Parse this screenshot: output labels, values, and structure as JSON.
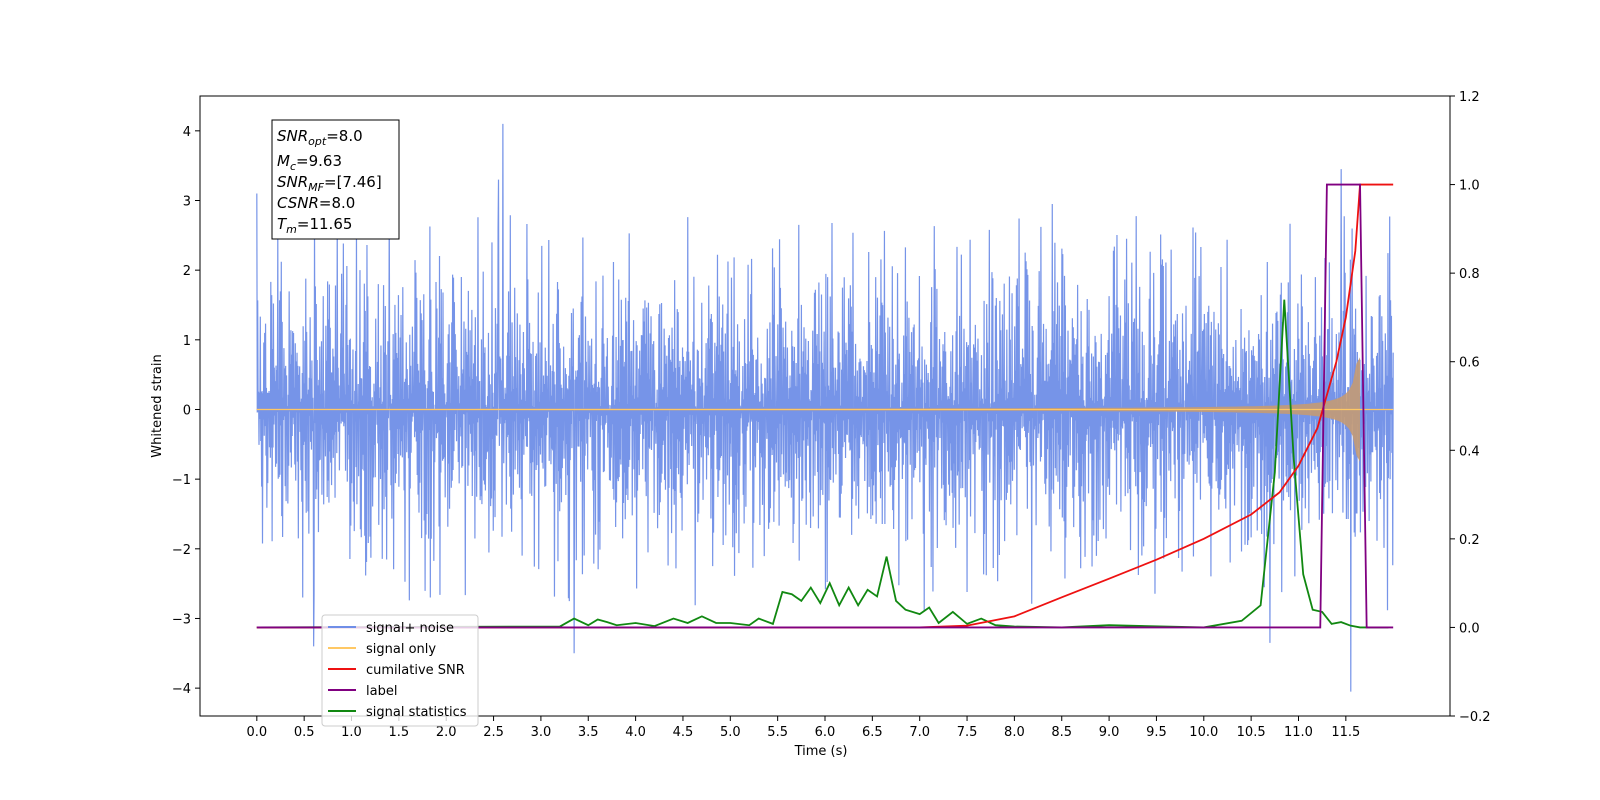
{
  "chart_data": {
    "type": "line",
    "xlabel": "Time (s)",
    "ylabel": "Whitened strain",
    "xlim": [
      -0.6,
      12.6
    ],
    "ylim_left": [
      -4.4,
      4.5
    ],
    "ylim_right": [
      -0.2,
      1.2
    ],
    "x_ticks": [
      "0.0",
      "0.5",
      "1.0",
      "1.5",
      "2.0",
      "2.5",
      "3.0",
      "3.5",
      "4.0",
      "4.5",
      "5.0",
      "5.5",
      "6.0",
      "6.5",
      "7.0",
      "7.5",
      "8.0",
      "8.5",
      "9.0",
      "9.5",
      "10.0",
      "10.5",
      "11.0",
      "11.5"
    ],
    "y_ticks_left": [
      "4",
      "3",
      "2",
      "1",
      "0",
      "−1",
      "−2",
      "−3",
      "−4"
    ],
    "y_ticks_right": [
      "1.2",
      "1.0",
      "0.8",
      "0.6",
      "0.4",
      "0.2",
      "0.0",
      "−0.2"
    ],
    "info_box": {
      "snr_opt": {
        "sym": "SNR",
        "sub": "opt",
        "val": "=8.0"
      },
      "mc": {
        "sym": "M",
        "sub": "c",
        "val": "=9.63"
      },
      "snr_mf": {
        "sym": "SNR",
        "sub": "MF",
        "val": "=[7.46]"
      },
      "csnr": {
        "sym": "CSNR",
        "sub": "",
        "val": "=8.0"
      },
      "tm": {
        "sym": "T",
        "sub": "m",
        "val": "=11.65"
      }
    },
    "legend": {
      "placement": "lower-left",
      "entries": [
        {
          "label": "signal+ noise",
          "color": "#6f8ee7"
        },
        {
          "label": "signal only",
          "color": "#ffc864"
        },
        {
          "label": "cumilative SNR",
          "color": "#ee1111"
        },
        {
          "label": "label",
          "color": "#800080"
        },
        {
          "label": "signal statistics",
          "color": "#118811"
        }
      ]
    },
    "series": [
      {
        "name": "signal+ noise",
        "axis": "left",
        "color": "#6f8ee7",
        "description_x_range": [
          0.0,
          12.0
        ],
        "envelope": {
          "typical": 1.25,
          "peaks": [
            {
              "x": 0.0,
              "y": 3.1
            },
            {
              "x": 0.6,
              "y": -3.4
            },
            {
              "x": 2.6,
              "y": 4.1
            },
            {
              "x": 2.55,
              "y": 3.3
            },
            {
              "x": 3.35,
              "y": -3.5
            },
            {
              "x": 1.4,
              "y": 3.0
            },
            {
              "x": 10.7,
              "y": -3.35
            },
            {
              "x": 11.55,
              "y": -4.05
            },
            {
              "x": 11.45,
              "y": 3.45
            },
            {
              "x": 8.4,
              "y": 2.95
            }
          ]
        }
      },
      {
        "name": "signal only",
        "axis": "left",
        "color": "#ffc864",
        "chirp": {
          "start": 0.0,
          "merger": 11.65,
          "end": 12.0,
          "peak_amp": 0.75
        }
      },
      {
        "name": "cumilative SNR",
        "axis": "right",
        "color": "#ee1111",
        "x": [
          0.0,
          7.0,
          7.5,
          8.0,
          8.5,
          9.0,
          9.5,
          10.0,
          10.5,
          10.8,
          11.0,
          11.2,
          11.4,
          11.5,
          11.6,
          11.65,
          11.7,
          12.0
        ],
        "y": [
          0.0,
          0.0,
          0.004,
          0.025,
          0.068,
          0.11,
          0.153,
          0.2,
          0.255,
          0.305,
          0.365,
          0.45,
          0.6,
          0.7,
          0.85,
          1.0,
          1.0,
          1.0
        ]
      },
      {
        "name": "label",
        "axis": "right",
        "color": "#800080",
        "x": [
          0.0,
          11.23,
          11.3,
          11.65,
          11.72,
          12.0
        ],
        "y": [
          0.0,
          0.0,
          1.0,
          1.0,
          0.0,
          0.0
        ]
      },
      {
        "name": "signal statistics",
        "axis": "right",
        "color": "#118811",
        "x": [
          0.0,
          3.2,
          3.35,
          3.5,
          3.6,
          3.7,
          3.8,
          4.0,
          4.2,
          4.4,
          4.55,
          4.7,
          4.85,
          5.0,
          5.2,
          5.3,
          5.45,
          5.55,
          5.65,
          5.75,
          5.85,
          5.95,
          6.05,
          6.15,
          6.25,
          6.35,
          6.45,
          6.55,
          6.65,
          6.75,
          6.85,
          7.0,
          7.1,
          7.2,
          7.35,
          7.5,
          7.65,
          7.8,
          8.0,
          8.5,
          9.0,
          10.0,
          10.4,
          10.6,
          10.75,
          10.85,
          10.95,
          11.05,
          11.15,
          11.25,
          11.35,
          11.45,
          11.55,
          11.65,
          11.75,
          11.95
        ],
        "y": [
          0.0,
          0.002,
          0.02,
          0.005,
          0.018,
          0.012,
          0.005,
          0.01,
          0.003,
          0.02,
          0.01,
          0.025,
          0.01,
          0.01,
          0.005,
          0.02,
          0.008,
          0.08,
          0.075,
          0.06,
          0.09,
          0.055,
          0.1,
          0.05,
          0.09,
          0.05,
          0.085,
          0.07,
          0.16,
          0.06,
          0.04,
          0.03,
          0.045,
          0.01,
          0.035,
          0.008,
          0.02,
          0.005,
          0.002,
          0.0,
          0.005,
          0.0,
          0.015,
          0.05,
          0.35,
          0.74,
          0.38,
          0.12,
          0.04,
          0.035,
          0.008,
          0.012,
          0.004,
          0.0,
          0.0,
          0.0
        ]
      }
    ]
  }
}
